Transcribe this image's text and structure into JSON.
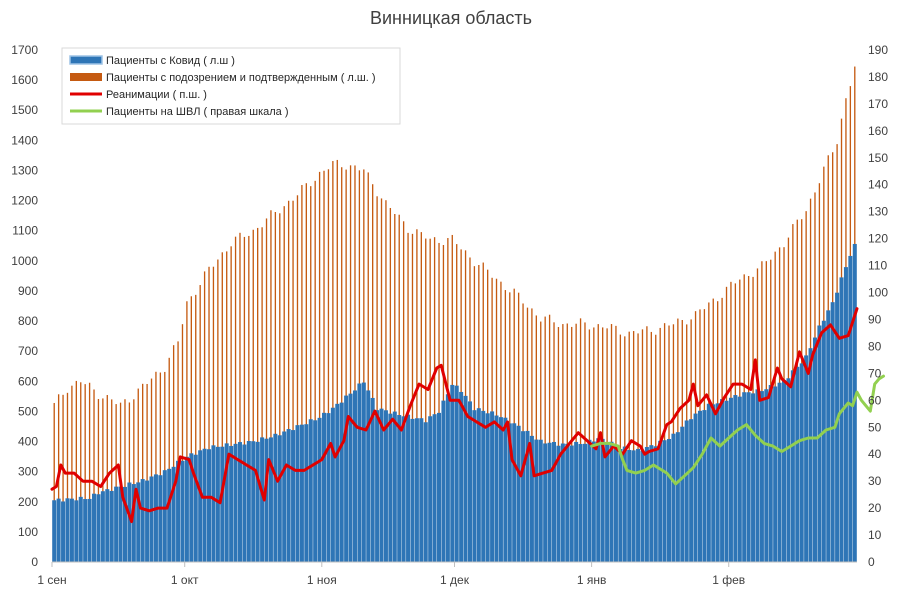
{
  "chart_data": {
    "type": "bar",
    "title": "Винницкая область",
    "left_axis": {
      "min": 0,
      "max": 1700,
      "step": 100
    },
    "right_axis": {
      "min": 0,
      "max": 190,
      "step": 10
    },
    "x_ticks": [
      {
        "day": 0,
        "label": "1 сен"
      },
      {
        "day": 30,
        "label": "1 окт"
      },
      {
        "day": 61,
        "label": "1 ноя"
      },
      {
        "day": 91,
        "label": "1 дек"
      },
      {
        "day": 122,
        "label": "1 янв"
      },
      {
        "day": 153,
        "label": "1 фев"
      }
    ],
    "days": 182,
    "legend": {
      "placement": "top-left",
      "items": [
        {
          "label": "Пациенты с Ковид ( л.ш )",
          "color": "#2e75b6",
          "kind": "bar-blue"
        },
        {
          "label": "Пациенты с подозрением и подтвержденным ( л.ш. )",
          "color": "#c55a11",
          "kind": "bar-orange"
        },
        {
          "label": "Реанимации ( п.ш. )",
          "color": "#e00000",
          "kind": "line-red"
        },
        {
          "label": "Пациенты на ШВЛ ( правая шкала )",
          "color": "#92d050",
          "kind": "line-green"
        }
      ]
    },
    "series": [
      {
        "name": "Пациенты с Ковид ( л.ш )",
        "axis": "left",
        "color": "#2e75b6",
        "knots": [
          [
            0,
            205
          ],
          [
            5,
            210
          ],
          [
            8,
            212
          ],
          [
            10,
            230
          ],
          [
            15,
            250
          ],
          [
            20,
            270
          ],
          [
            25,
            300
          ],
          [
            29,
            340
          ],
          [
            30,
            350
          ],
          [
            35,
            380
          ],
          [
            40,
            390
          ],
          [
            45,
            400
          ],
          [
            50,
            420
          ],
          [
            55,
            450
          ],
          [
            60,
            480
          ],
          [
            63,
            510
          ],
          [
            67,
            560
          ],
          [
            70,
            600
          ],
          [
            73,
            510
          ],
          [
            78,
            490
          ],
          [
            81,
            480
          ],
          [
            84,
            470
          ],
          [
            87,
            500
          ],
          [
            90,
            590
          ],
          [
            92,
            570
          ],
          [
            95,
            510
          ],
          [
            100,
            490
          ],
          [
            105,
            450
          ],
          [
            110,
            400
          ],
          [
            115,
            390
          ],
          [
            120,
            395
          ],
          [
            123,
            410
          ],
          [
            126,
            395
          ],
          [
            128,
            380
          ],
          [
            132,
            370
          ],
          [
            136,
            390
          ],
          [
            140,
            420
          ],
          [
            144,
            480
          ],
          [
            148,
            520
          ],
          [
            152,
            540
          ],
          [
            156,
            560
          ],
          [
            160,
            570
          ],
          [
            165,
            600
          ],
          [
            170,
            680
          ],
          [
            173,
            780
          ],
          [
            176,
            860
          ],
          [
            178,
            940
          ],
          [
            180,
            1020
          ],
          [
            182,
            1080
          ]
        ]
      },
      {
        "name": "Пациенты с подозрением и подтвержденным ( л.ш. )",
        "axis": "left",
        "color": "#c55a11",
        "knots": [
          [
            0,
            520
          ],
          [
            3,
            580
          ],
          [
            6,
            600
          ],
          [
            10,
            560
          ],
          [
            15,
            520
          ],
          [
            20,
            580
          ],
          [
            25,
            650
          ],
          [
            28,
            730
          ],
          [
            30,
            860
          ],
          [
            35,
            970
          ],
          [
            40,
            1060
          ],
          [
            45,
            1100
          ],
          [
            50,
            1160
          ],
          [
            55,
            1220
          ],
          [
            60,
            1290
          ],
          [
            63,
            1320
          ],
          [
            66,
            1320
          ],
          [
            70,
            1300
          ],
          [
            75,
            1190
          ],
          [
            80,
            1110
          ],
          [
            85,
            1070
          ],
          [
            90,
            1070
          ],
          [
            95,
            1000
          ],
          [
            100,
            940
          ],
          [
            105,
            880
          ],
          [
            110,
            810
          ],
          [
            115,
            790
          ],
          [
            120,
            790
          ],
          [
            125,
            780
          ],
          [
            130,
            760
          ],
          [
            135,
            770
          ],
          [
            140,
            790
          ],
          [
            145,
            820
          ],
          [
            150,
            880
          ],
          [
            155,
            940
          ],
          [
            160,
            980
          ],
          [
            165,
            1060
          ],
          [
            170,
            1170
          ],
          [
            174,
            1300
          ],
          [
            177,
            1400
          ],
          [
            179,
            1540
          ],
          [
            181,
            1640
          ],
          [
            182,
            1690
          ]
        ]
      },
      {
        "name": "Реанимации ( п.ш. )",
        "axis": "right",
        "color": "#e00000",
        "knots": [
          [
            0,
            27
          ],
          [
            1,
            28
          ],
          [
            2,
            36
          ],
          [
            3,
            33
          ],
          [
            5,
            33
          ],
          [
            7,
            30
          ],
          [
            9,
            30
          ],
          [
            11,
            28
          ],
          [
            13,
            33
          ],
          [
            15,
            36
          ],
          [
            16,
            24
          ],
          [
            18,
            15
          ],
          [
            19,
            27
          ],
          [
            20,
            20
          ],
          [
            22,
            19
          ],
          [
            24,
            20
          ],
          [
            26,
            20
          ],
          [
            28,
            30
          ],
          [
            29,
            39
          ],
          [
            31,
            38
          ],
          [
            32,
            33
          ],
          [
            34,
            24
          ],
          [
            36,
            24
          ],
          [
            38,
            22
          ],
          [
            40,
            40
          ],
          [
            42,
            38
          ],
          [
            44,
            36
          ],
          [
            46,
            34
          ],
          [
            48,
            23
          ],
          [
            49,
            38
          ],
          [
            51,
            30
          ],
          [
            53,
            36
          ],
          [
            55,
            34
          ],
          [
            57,
            34
          ],
          [
            59,
            36
          ],
          [
            61,
            38
          ],
          [
            63,
            44
          ],
          [
            64,
            39
          ],
          [
            66,
            45
          ],
          [
            67,
            54
          ],
          [
            69,
            50
          ],
          [
            71,
            49
          ],
          [
            73,
            56
          ],
          [
            75,
            49
          ],
          [
            77,
            53
          ],
          [
            79,
            49
          ],
          [
            81,
            58
          ],
          [
            83,
            66
          ],
          [
            85,
            64
          ],
          [
            87,
            72
          ],
          [
            88,
            73
          ],
          [
            90,
            60
          ],
          [
            92,
            60
          ],
          [
            94,
            54
          ],
          [
            96,
            52
          ],
          [
            98,
            50
          ],
          [
            100,
            52
          ],
          [
            102,
            49
          ],
          [
            103,
            52
          ],
          [
            104,
            38
          ],
          [
            106,
            32
          ],
          [
            108,
            44
          ],
          [
            109,
            32
          ],
          [
            111,
            33
          ],
          [
            113,
            34
          ],
          [
            115,
            40
          ],
          [
            117,
            44
          ],
          [
            119,
            48
          ],
          [
            121,
            45
          ],
          [
            123,
            42
          ],
          [
            124,
            48
          ],
          [
            125,
            39
          ],
          [
            127,
            43
          ],
          [
            129,
            40
          ],
          [
            131,
            45
          ],
          [
            133,
            43
          ],
          [
            134,
            40
          ],
          [
            135,
            41
          ],
          [
            137,
            42
          ],
          [
            139,
            51
          ],
          [
            140,
            52
          ],
          [
            142,
            57
          ],
          [
            144,
            60
          ],
          [
            145,
            66
          ],
          [
            146,
            58
          ],
          [
            148,
            62
          ],
          [
            150,
            55
          ],
          [
            152,
            61
          ],
          [
            154,
            66
          ],
          [
            156,
            66
          ],
          [
            158,
            64
          ],
          [
            159,
            75
          ],
          [
            160,
            60
          ],
          [
            162,
            61
          ],
          [
            164,
            72
          ],
          [
            165,
            68
          ],
          [
            167,
            65
          ],
          [
            169,
            78
          ],
          [
            171,
            70
          ],
          [
            172,
            77
          ],
          [
            174,
            85
          ],
          [
            176,
            88
          ],
          [
            178,
            83
          ],
          [
            180,
            84
          ],
          [
            182,
            94
          ]
        ]
      },
      {
        "name": "Пациенты на ШВЛ ( правая шкала )",
        "axis": "right",
        "color": "#92d050",
        "knots": [
          [
            122,
            43
          ],
          [
            124,
            44
          ],
          [
            126,
            44
          ],
          [
            128,
            43
          ],
          [
            129,
            38
          ],
          [
            130,
            34
          ],
          [
            132,
            33
          ],
          [
            134,
            34
          ],
          [
            136,
            36
          ],
          [
            138,
            34
          ],
          [
            139,
            33
          ],
          [
            141,
            29
          ],
          [
            143,
            32
          ],
          [
            145,
            35
          ],
          [
            147,
            40
          ],
          [
            149,
            46
          ],
          [
            151,
            43
          ],
          [
            153,
            46
          ],
          [
            155,
            49
          ],
          [
            157,
            51
          ],
          [
            159,
            47
          ],
          [
            161,
            44
          ],
          [
            163,
            43
          ],
          [
            165,
            41
          ],
          [
            167,
            43
          ],
          [
            169,
            45
          ],
          [
            171,
            46
          ],
          [
            173,
            46
          ],
          [
            175,
            49
          ],
          [
            177,
            50
          ],
          [
            178,
            55
          ],
          [
            180,
            59
          ],
          [
            181,
            58
          ],
          [
            182,
            63
          ],
          [
            183,
            60
          ],
          [
            185,
            56
          ],
          [
            186,
            66
          ],
          [
            187,
            68
          ],
          [
            188,
            69
          ]
        ]
      }
    ]
  }
}
